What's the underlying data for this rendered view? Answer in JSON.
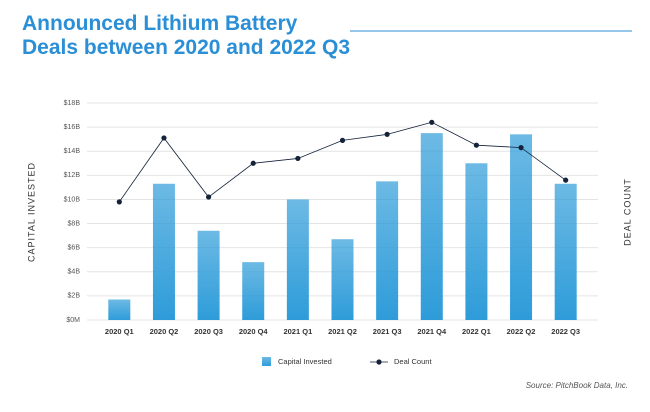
{
  "chart_data": {
    "type": "bar",
    "title": "Announced Lithium Battery Deals between 2020 and 2022 Q3",
    "ylabel": "CAPITAL INVESTED",
    "y2label": "DEAL COUNT",
    "source": "Source: PitchBook Data, Inc.",
    "categories": [
      "2020 Q1",
      "2020 Q2",
      "2020 Q3",
      "2020 Q4",
      "2021 Q1",
      "2021 Q2",
      "2021 Q3",
      "2021 Q4",
      "2022 Q1",
      "2022 Q2",
      "2022 Q3"
    ],
    "series": [
      {
        "name": "Capital Invested",
        "type": "bar",
        "color": "#2e9cd9",
        "values": [
          1.7,
          11.3,
          7.4,
          4.8,
          10.0,
          6.7,
          11.5,
          15.5,
          13.0,
          15.4,
          11.3
        ]
      },
      {
        "name": "Deal Count",
        "type": "line",
        "axis": "y2",
        "color": "#14233a",
        "values": [
          9.8,
          15.1,
          10.2,
          13.0,
          13.4,
          14.9,
          15.4,
          16.4,
          14.5,
          14.3,
          11.6
        ]
      }
    ],
    "ylim": [
      0,
      18
    ],
    "yticks": [
      {
        "value": 0,
        "label": "$0M"
      },
      {
        "value": 2,
        "label": "$2B"
      },
      {
        "value": 4,
        "label": "$4B"
      },
      {
        "value": 6,
        "label": "$6B"
      },
      {
        "value": 8,
        "label": "$8B"
      },
      {
        "value": 10,
        "label": "$10B"
      },
      {
        "value": 12,
        "label": "$12B"
      },
      {
        "value": 14,
        "label": "$14B"
      },
      {
        "value": 16,
        "label": "$16B"
      },
      {
        "value": 18,
        "label": "$18B"
      }
    ],
    "y2lim": [
      0,
      18
    ],
    "grid": true
  }
}
